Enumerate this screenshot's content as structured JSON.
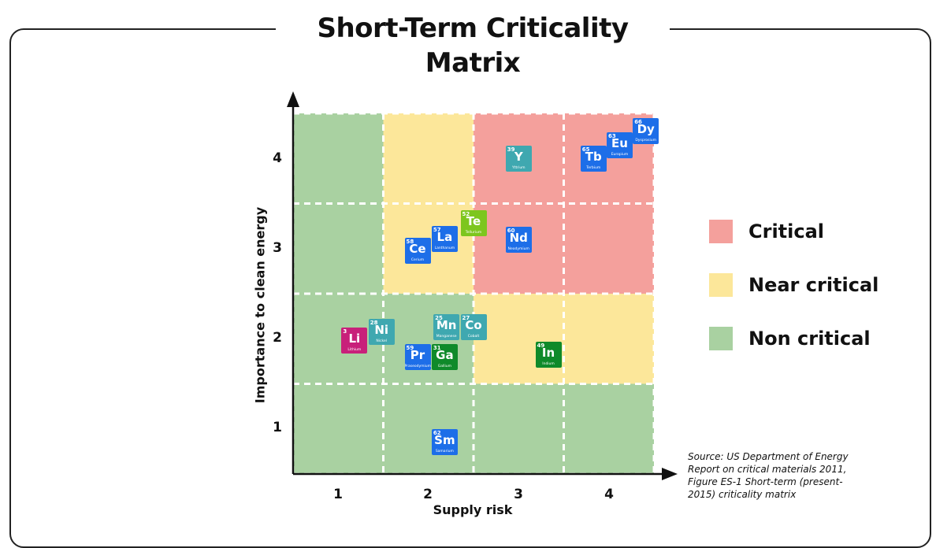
{
  "title": "Short-Term Criticality Matrix",
  "axes": {
    "x_label": "Supply risk",
    "y_label": "Importance to clean energy",
    "x_ticks": [
      "1",
      "2",
      "3",
      "4"
    ],
    "y_ticks": [
      "1",
      "2",
      "3",
      "4"
    ]
  },
  "legend": [
    {
      "label": "Critical",
      "color": "#f4a09c"
    },
    {
      "label": "Near critical",
      "color": "#fce79a"
    },
    {
      "label": "Non critical",
      "color": "#a9d1a1"
    }
  ],
  "source": "Source: US Department of Energy Report on critical materials 2011, Figure ES-1 Short-term (present-2015) criticality matrix",
  "chart_data": {
    "type": "scatter",
    "title": "Short-Term Criticality Matrix",
    "xlabel": "Supply risk",
    "ylabel": "Importance to clean energy",
    "xlim": [
      0.5,
      4.5
    ],
    "ylim": [
      0.5,
      4.5
    ],
    "grid": true,
    "cell_categories": [
      {
        "supply_risk": 1,
        "importance": 1,
        "category": "Non critical"
      },
      {
        "supply_risk": 2,
        "importance": 1,
        "category": "Non critical"
      },
      {
        "supply_risk": 3,
        "importance": 1,
        "category": "Non critical"
      },
      {
        "supply_risk": 4,
        "importance": 1,
        "category": "Non critical"
      },
      {
        "supply_risk": 1,
        "importance": 2,
        "category": "Non critical"
      },
      {
        "supply_risk": 2,
        "importance": 2,
        "category": "Non critical"
      },
      {
        "supply_risk": 3,
        "importance": 2,
        "category": "Near critical"
      },
      {
        "supply_risk": 4,
        "importance": 2,
        "category": "Near critical"
      },
      {
        "supply_risk": 1,
        "importance": 3,
        "category": "Non critical"
      },
      {
        "supply_risk": 2,
        "importance": 3,
        "category": "Near critical"
      },
      {
        "supply_risk": 3,
        "importance": 3,
        "category": "Critical"
      },
      {
        "supply_risk": 4,
        "importance": 3,
        "category": "Critical"
      },
      {
        "supply_risk": 1,
        "importance": 4,
        "category": "Non critical"
      },
      {
        "supply_risk": 2,
        "importance": 4,
        "category": "Near critical"
      },
      {
        "supply_risk": 3,
        "importance": 4,
        "category": "Critical"
      },
      {
        "supply_risk": 4,
        "importance": 4,
        "category": "Critical"
      }
    ],
    "elements": [
      {
        "symbol": "Li",
        "number": "3",
        "name": "Lithium",
        "x": 1.18,
        "y": 1.98,
        "color": "#c8207a"
      },
      {
        "symbol": "Ni",
        "number": "28",
        "name": "Nickel",
        "x": 1.48,
        "y": 2.08,
        "color": "#3fa8b0"
      },
      {
        "symbol": "Ce",
        "number": "58",
        "name": "Cerium",
        "x": 1.88,
        "y": 2.98,
        "color": "#1d6ee8"
      },
      {
        "symbol": "La",
        "number": "57",
        "name": "Lanthanum",
        "x": 2.18,
        "y": 3.11,
        "color": "#1d6ee8"
      },
      {
        "symbol": "Te",
        "number": "52",
        "name": "Tellurium",
        "x": 2.5,
        "y": 3.28,
        "color": "#7dc61e"
      },
      {
        "symbol": "Mn",
        "number": "25",
        "name": "Manganese",
        "x": 2.2,
        "y": 2.13,
        "color": "#3fa8b0"
      },
      {
        "symbol": "Co",
        "number": "27",
        "name": "Cobalt",
        "x": 2.5,
        "y": 2.13,
        "color": "#3fa8b0"
      },
      {
        "symbol": "Pr",
        "number": "59",
        "name": "Praseodymium",
        "x": 1.88,
        "y": 1.8,
        "color": "#1d6ee8"
      },
      {
        "symbol": "Ga",
        "number": "31",
        "name": "Gallium",
        "x": 2.18,
        "y": 1.8,
        "color": "#0f8a2a"
      },
      {
        "symbol": "Sm",
        "number": "62",
        "name": "Samarium",
        "x": 2.18,
        "y": 0.85,
        "color": "#1d6ee8"
      },
      {
        "symbol": "Y",
        "number": "39",
        "name": "Yttrium",
        "x": 3.0,
        "y": 4.0,
        "color": "#3fa8b0"
      },
      {
        "symbol": "Nd",
        "number": "60",
        "name": "Neodymium",
        "x": 3.0,
        "y": 3.1,
        "color": "#1d6ee8"
      },
      {
        "symbol": "In",
        "number": "49",
        "name": "Indium",
        "x": 3.33,
        "y": 1.82,
        "color": "#0f8a2a"
      },
      {
        "symbol": "Tb",
        "number": "65",
        "name": "Terbium",
        "x": 3.83,
        "y": 4.0,
        "color": "#1d6ee8"
      },
      {
        "symbol": "Eu",
        "number": "63",
        "name": "Europium",
        "x": 4.12,
        "y": 4.15,
        "color": "#1d6ee8"
      },
      {
        "symbol": "Dy",
        "number": "66",
        "name": "Dysprosium",
        "x": 4.41,
        "y": 4.3,
        "color": "#1d6ee8"
      }
    ]
  }
}
